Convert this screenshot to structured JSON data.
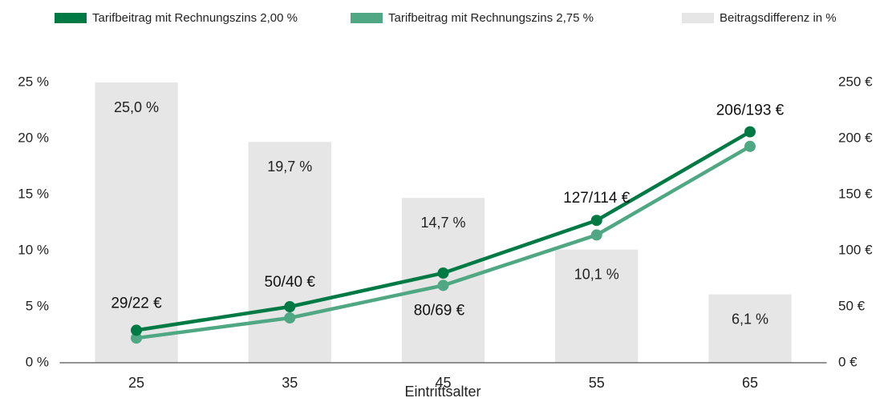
{
  "chart_data": {
    "type": "bar-line",
    "x_label": "Eintrittsalter",
    "categories": [
      "25",
      "35",
      "45",
      "55",
      "65"
    ],
    "bars": {
      "name": "Beitragsdifferenz in %",
      "color": "#e6e6e6",
      "values": [
        25.0,
        19.7,
        14.7,
        10.1,
        6.1
      ],
      "value_labels": [
        "25,0 %",
        "19,7 %",
        "14,7 %",
        "10,1 %",
        "6,1 %"
      ]
    },
    "series": [
      {
        "name": "Tarifbeitrag mit Rechnungszins 2,00 %",
        "color": "#007a45",
        "axis": "y2",
        "values": [
          29,
          50,
          80,
          127,
          206
        ]
      },
      {
        "name": "Tarifbeitrag mit Rechnungszins 2,75 %",
        "color": "#4fa883",
        "axis": "y2",
        "values": [
          22,
          40,
          69,
          114,
          193
        ]
      }
    ],
    "point_labels": [
      "29/22 €",
      "50/40 €",
      "80/69 €",
      "127/114 €",
      "206/193 €"
    ],
    "ylim": [
      0,
      25
    ],
    "yticks": [
      {
        "value": 0,
        "label": "0 %"
      },
      {
        "value": 5,
        "label": "5 %"
      },
      {
        "value": 10,
        "label": "10 %"
      },
      {
        "value": 15,
        "label": "15 %"
      },
      {
        "value": 20,
        "label": "20 %"
      },
      {
        "value": 25,
        "label": "25 %"
      }
    ],
    "y2lim": [
      0,
      250
    ],
    "y2ticks": [
      {
        "value": 0,
        "label": "0 €"
      },
      {
        "value": 50,
        "label": "50 €"
      },
      {
        "value": 100,
        "label": "100 €"
      },
      {
        "value": 150,
        "label": "150 €"
      },
      {
        "value": 200,
        "label": "200 €"
      },
      {
        "value": 250,
        "label": "250 €"
      }
    ]
  }
}
